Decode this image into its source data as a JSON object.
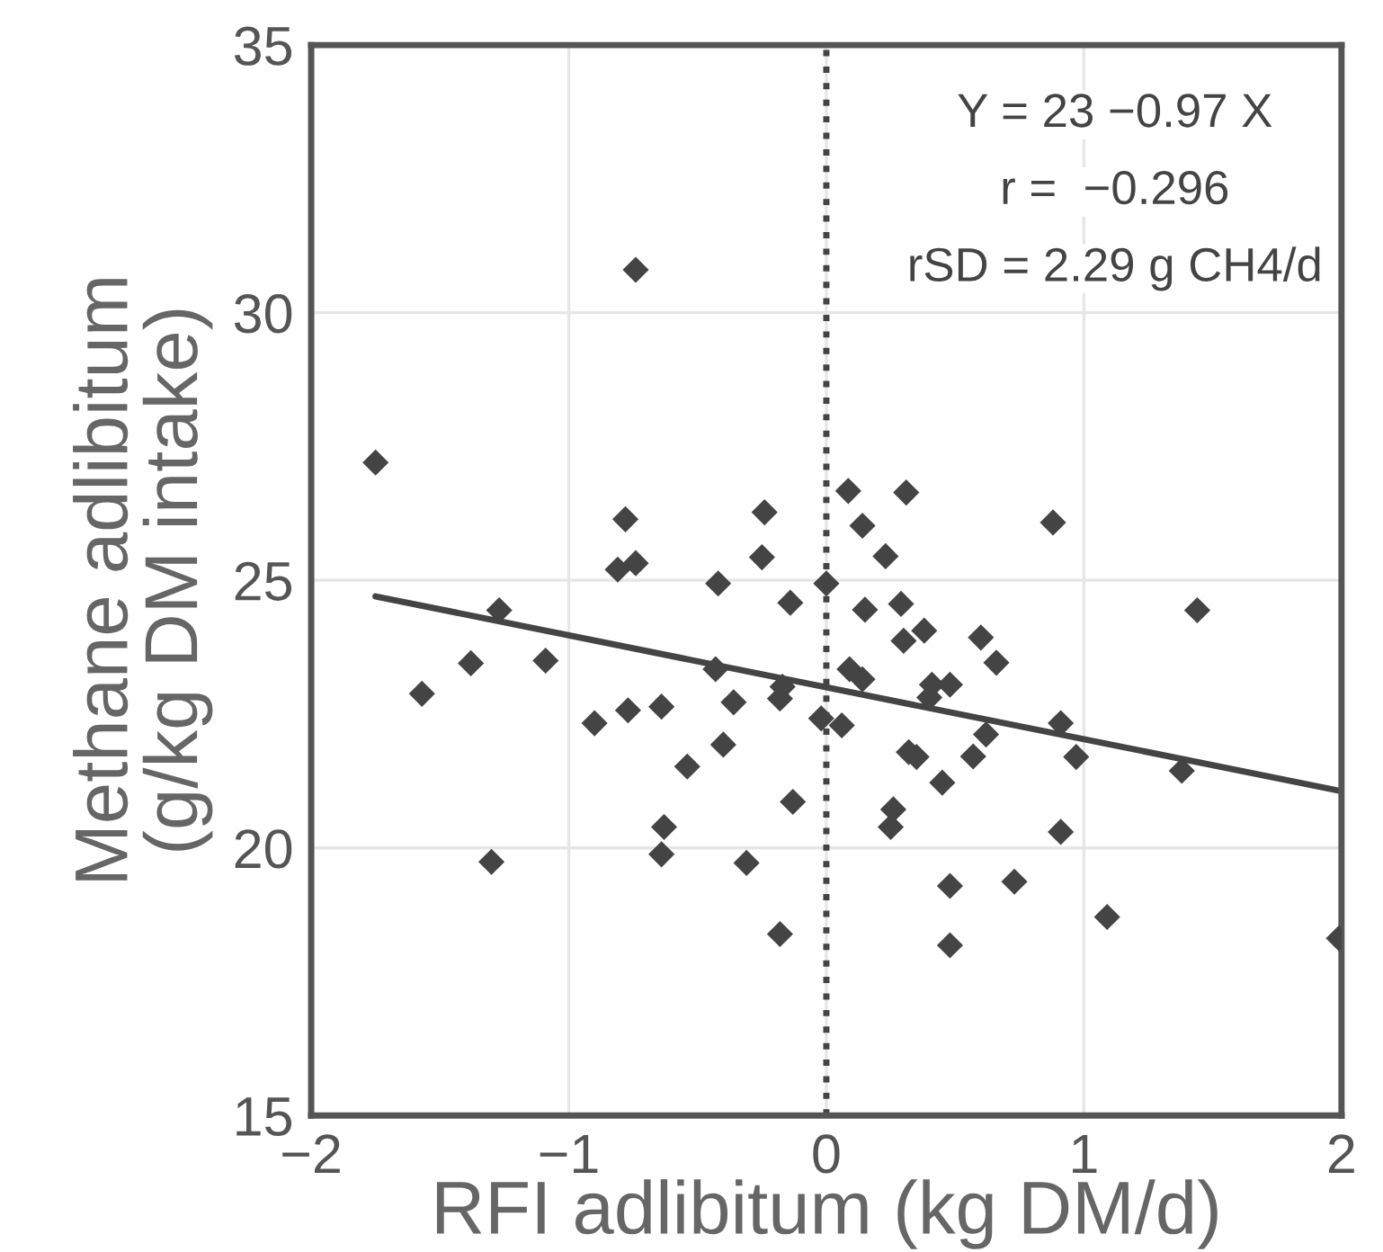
{
  "chart_data": {
    "type": "scatter",
    "xlabel": "RFI adlibitum (kg DM/d)",
    "ylabel": "Methane adlibitum\n(g/kg DM intake)",
    "xlim": [
      -2,
      2
    ],
    "xticks": [
      {
        "value": -2,
        "label": "−2"
      },
      {
        "value": -1,
        "label": "−1"
      },
      0,
      1,
      2
    ],
    "ylim": [
      15,
      35
    ],
    "yticks": [
      15,
      20,
      25,
      30,
      35
    ],
    "grid": true,
    "marker": "diamond",
    "annotations": [
      "Y = 23 −0.97 X",
      "r =  −0.296",
      "rSD = 2.29 g CH4/d"
    ],
    "ref_lines": [
      {
        "axis": "x",
        "value": 0,
        "label": null,
        "color": "#444444",
        "line_style": "dotted"
      }
    ],
    "series": [
      {
        "color": "#444444",
        "x": [
          -0.74,
          -1.75,
          -0.78,
          -0.24,
          -0.81,
          -0.74,
          -0.25,
          -0.42,
          -0.14,
          0.0,
          -1.27,
          -1.38,
          -1.09,
          -0.43,
          0.085,
          0.31,
          0.14,
          0.88,
          0.23,
          0.15,
          0.29,
          1.44,
          0.38,
          0.3,
          0.6,
          0.66,
          0.09,
          -1.57,
          -0.9,
          -0.77,
          -0.64,
          -0.36,
          -0.18,
          -0.17,
          -0.02,
          -0.4,
          -0.54,
          -0.13,
          -0.63,
          -0.64,
          -1.3,
          -0.31,
          -0.18,
          0.14,
          0.41,
          0.48,
          0.4,
          0.06,
          0.91,
          0.62,
          0.32,
          0.35,
          0.57,
          0.97,
          1.38,
          0.45,
          0.26,
          0.25,
          0.91,
          0.48,
          0.73,
          1.09,
          0.48,
          1.99
        ],
        "values": [
          30.8,
          27.2,
          26.14,
          26.27,
          25.2,
          25.32,
          25.43,
          24.94,
          24.58,
          24.94,
          24.44,
          23.45,
          23.5,
          23.34,
          26.67,
          26.64,
          26.02,
          26.08,
          25.45,
          24.45,
          24.56,
          24.44,
          24.06,
          23.87,
          23.93,
          23.46,
          23.34,
          22.88,
          22.33,
          22.57,
          22.64,
          22.72,
          22.79,
          23.01,
          22.42,
          21.93,
          21.52,
          20.86,
          20.39,
          19.88,
          19.74,
          19.72,
          18.39,
          23.15,
          23.05,
          23.05,
          22.81,
          22.29,
          22.33,
          22.12,
          21.79,
          21.7,
          21.71,
          21.7,
          21.44,
          21.22,
          20.72,
          20.39,
          20.3,
          19.29,
          19.37,
          18.71,
          18.18,
          18.31
        ]
      },
      {
        "type": "line",
        "marker": "none",
        "color": "#444444",
        "x": [
          -1.75,
          2
        ],
        "values": [
          24.7,
          21.06
        ]
      }
    ]
  }
}
